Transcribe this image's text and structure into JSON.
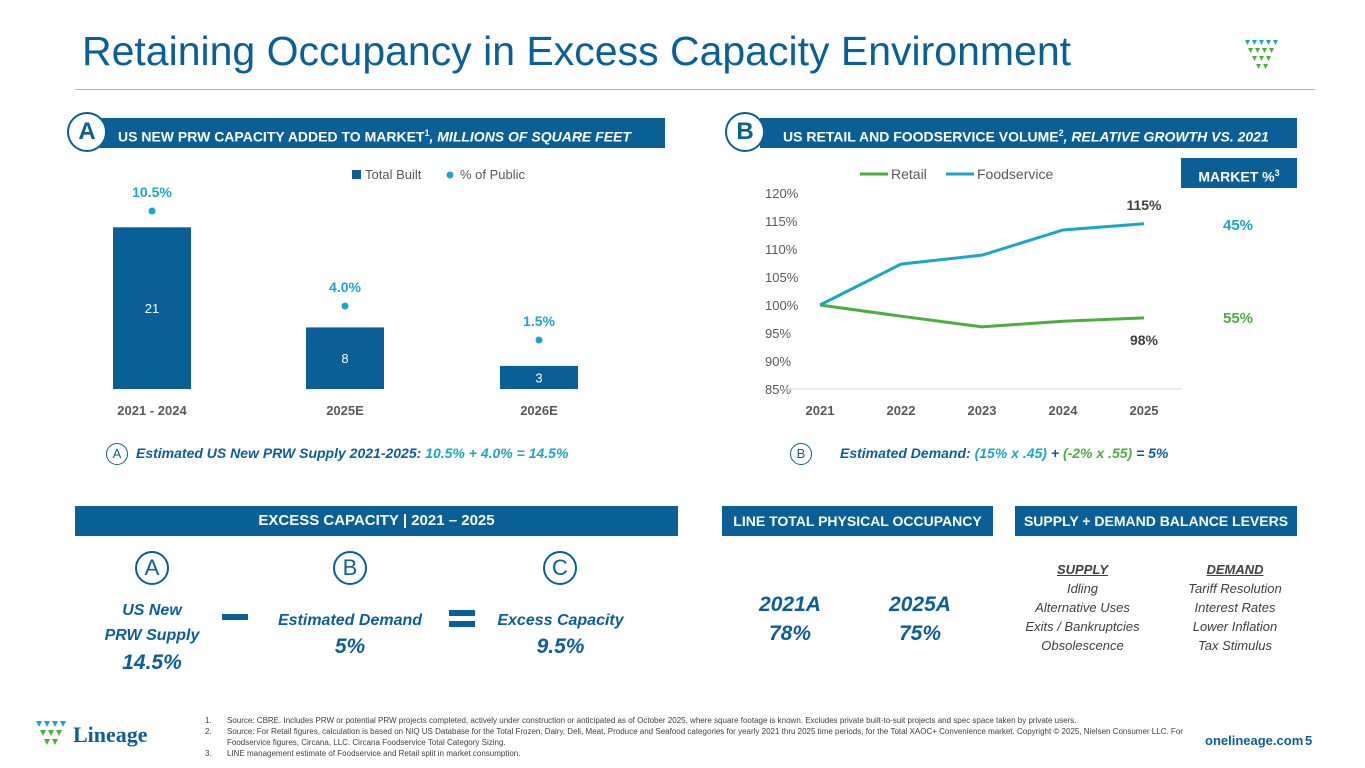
{
  "title": "Retaining Occupancy in Excess Capacity Environment",
  "colors": {
    "brand_blue": "#0a5f97",
    "teal": "#1aa7c5",
    "green": "#4cae3f"
  },
  "section_a": {
    "badge": "A",
    "header": "US NEW PRW CAPACITY ADDED TO MARKET",
    "sup": "1",
    "header_italic": ", MILLIONS OF SQUARE FEET",
    "estimate_badge": "A",
    "estimate_label": "Estimated US New PRW Supply 2021-2025: ",
    "estimate_formula": "10.5% + 4.0% = 14.5%"
  },
  "section_b": {
    "badge": "B",
    "header": "US RETAIL AND FOODSERVICE VOLUME",
    "sup": "2",
    "header_italic": ", RELATIVE GROWTH VS. 2021",
    "market_label": "MARKET %",
    "market_sup": "3",
    "market_foodservice": "45%",
    "market_retail": "55%",
    "estimate_badge": "B",
    "estimate_label": "Estimated Demand: ",
    "estimate_p1": "(15% x .45)",
    "estimate_plus": " + ",
    "estimate_p2": "(-2% x .55)",
    "estimate_end": " = 5%"
  },
  "chart_data": [
    {
      "type": "bar",
      "categories": [
        "2021 - 2024",
        "2025E",
        "2026E"
      ],
      "series": [
        {
          "name": "Total Built",
          "type": "bar",
          "values": [
            21,
            8,
            3
          ]
        },
        {
          "name": "% of Public",
          "type": "scatter",
          "values": [
            10.5,
            4.0,
            1.5
          ],
          "labels": [
            "10.5%",
            "4.0%",
            "1.5%"
          ]
        }
      ],
      "legend": "top",
      "grid": false
    },
    {
      "type": "line",
      "x": [
        2021,
        2022,
        2023,
        2024,
        2025
      ],
      "series": [
        {
          "name": "Retail",
          "values": [
            100,
            98,
            96.1,
            97.1,
            97.7
          ],
          "end_label": "98%"
        },
        {
          "name": "Foodservice",
          "values": [
            100,
            107.3,
            108.9,
            113.4,
            114.5
          ],
          "end_label": "115%"
        }
      ],
      "ylim": [
        85,
        120
      ],
      "yticks": [
        "85%",
        "90%",
        "95%",
        "100%",
        "105%",
        "110%",
        "115%",
        "120%"
      ],
      "legend": "top",
      "grid": false
    }
  ],
  "excess": {
    "header": "EXCESS CAPACITY | 2021 – 2025",
    "a": "A",
    "b": "B",
    "c": "C",
    "a_label1": "US New",
    "a_label2": "PRW Supply",
    "a_value": "14.5%",
    "b_label": "Estimated Demand",
    "b_value": "5%",
    "c_label": "Excess Capacity",
    "c_value": "9.5%"
  },
  "occupancy": {
    "header": "LINE TOTAL PHYSICAL OCCUPANCY",
    "y1": "2021A",
    "v1": "78%",
    "y2": "2025A",
    "v2": "75%"
  },
  "levers": {
    "header": "SUPPLY + DEMAND BALANCE LEVERS",
    "supply_title": "SUPPLY",
    "supply": [
      "Idling",
      "Alternative Uses",
      "Exits / Bankruptcies",
      "Obsolescence"
    ],
    "demand_title": "DEMAND",
    "demand": [
      "Tariff Resolution",
      "Interest Rates",
      "Lower Inflation",
      "Tax Stimulus"
    ]
  },
  "footnotes": [
    {
      "n": "1.",
      "text": "Source: CBRE. Includes PRW or potential PRW projects completed, actively under construction or anticipated as of October 2025, where square footage is known.  Excludes private built-to-suit projects and spec space taken by private users."
    },
    {
      "n": "2.",
      "text": "Source: For Retail figures, calculation is based on NIQ US Database for the Total Frozen, Dairy, Deli, Meat, Produce and Seafood categories for yearly 2021 thru 2025 time periods, for the Total XAOC+ Convenience market. Copyright © 2025, Nielsen Consumer LLC.  For Foodservice figures, Circana, LLC. Circana Foodservice Total Category Sizing."
    },
    {
      "n": "3.",
      "text": "LINE management estimate of Foodservice and Retail split in market consumption."
    }
  ],
  "footer": {
    "logo_text": "Lineage",
    "url": "onelineage.com",
    "page": "5"
  }
}
